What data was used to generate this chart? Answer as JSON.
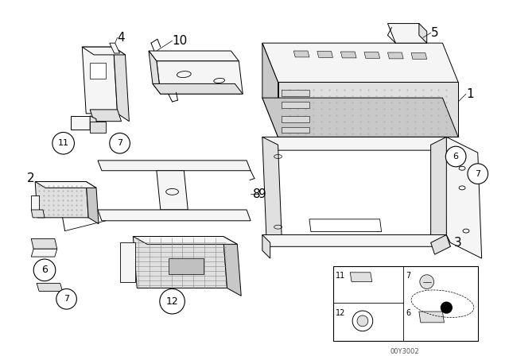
{
  "background_color": "#ffffff",
  "line_color": "#000000",
  "diagram_number": "00Y3002",
  "lw": 0.7,
  "lw_thick": 1.0,
  "fc_light": "#f5f5f5",
  "fc_mid": "#e0e0e0",
  "fc_dark": "#c8c8c8",
  "fc_dot": "#999999"
}
